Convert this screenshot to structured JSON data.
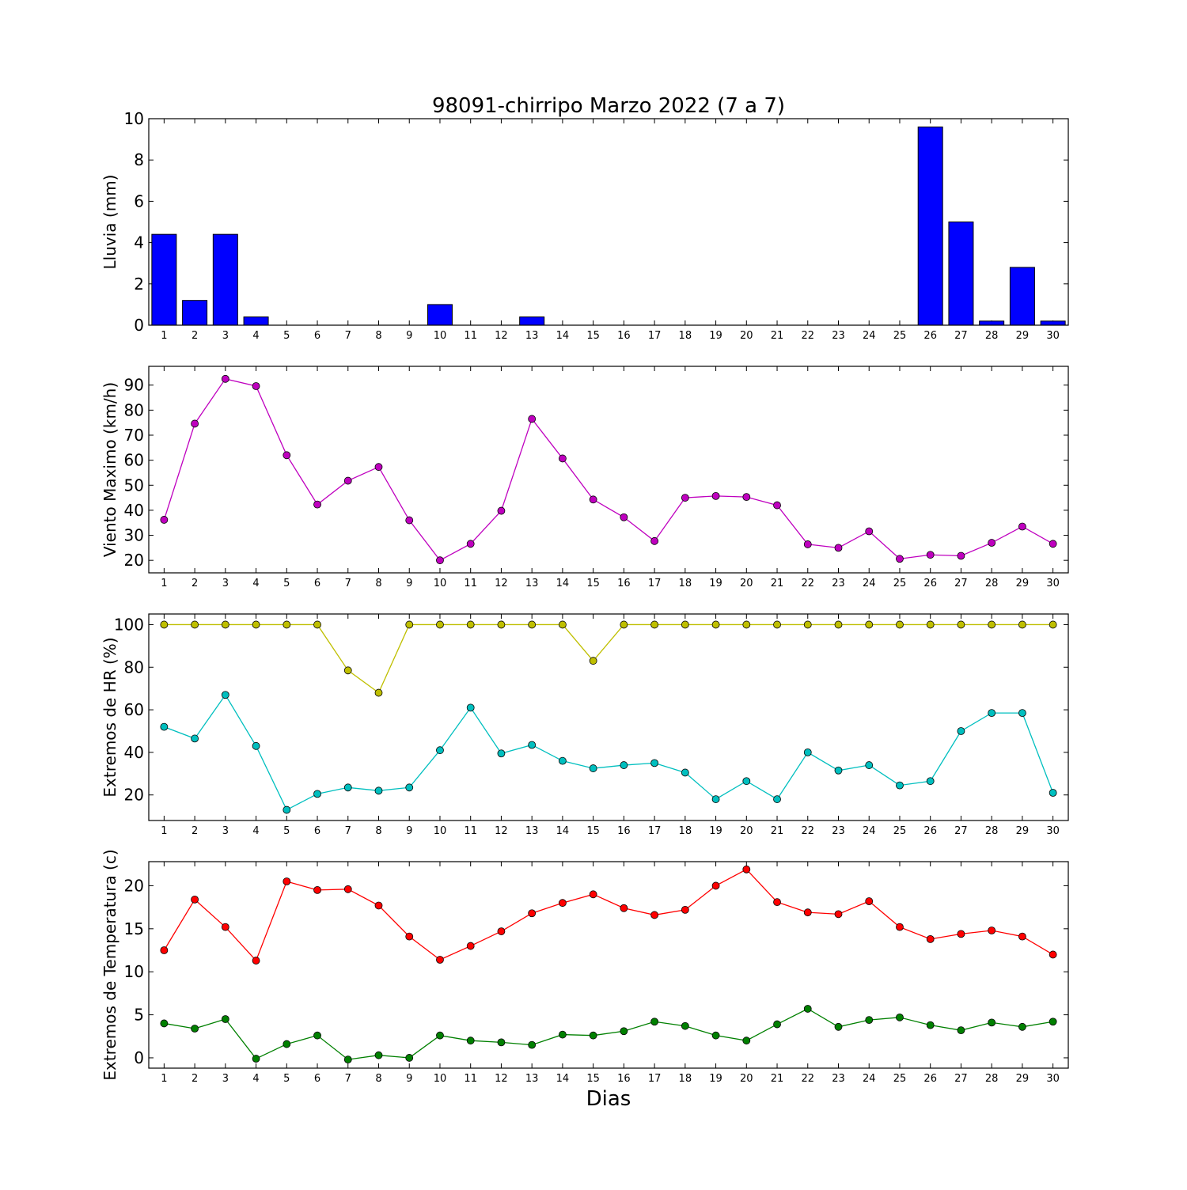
{
  "title": "98091-chirripo Marzo 2022  (7 a 7)",
  "xlabel": "Dias",
  "chart_data": [
    {
      "type": "bar",
      "ylabel": "Lluvia (mm)",
      "ylim": [
        0,
        10
      ],
      "yticks": [
        0,
        2,
        4,
        6,
        8,
        10
      ],
      "categories": [
        "1",
        "2",
        "3",
        "4",
        "5",
        "6",
        "7",
        "8",
        "9",
        "10",
        "11",
        "12",
        "13",
        "14",
        "15",
        "16",
        "17",
        "18",
        "19",
        "20",
        "21",
        "22",
        "23",
        "24",
        "25",
        "26",
        "27",
        "28",
        "29",
        "30"
      ],
      "values": [
        4.4,
        1.2,
        4.4,
        0.4,
        0,
        0,
        0,
        0,
        0,
        1.0,
        0,
        0,
        0.4,
        0,
        0,
        0,
        0,
        0,
        0,
        0,
        0,
        0,
        0,
        0,
        0,
        9.6,
        5.0,
        0.2,
        2.8,
        0.2
      ],
      "color": "#0000ff"
    },
    {
      "type": "line",
      "ylabel": "Viento Maximo (km/h)",
      "ylim": [
        15,
        97.5
      ],
      "yticks": [
        20,
        30,
        40,
        50,
        60,
        70,
        80,
        90
      ],
      "categories": [
        "1",
        "2",
        "3",
        "4",
        "5",
        "6",
        "7",
        "8",
        "9",
        "10",
        "11",
        "12",
        "13",
        "14",
        "15",
        "16",
        "17",
        "18",
        "19",
        "20",
        "21",
        "22",
        "23",
        "24",
        "25",
        "26",
        "27",
        "28",
        "29",
        "30"
      ],
      "series": [
        {
          "color": "#bf00bf",
          "values": [
            36.2,
            74.6,
            92.5,
            89.6,
            62.0,
            42.3,
            51.8,
            57.3,
            36.0,
            20.0,
            26.6,
            39.8,
            76.5,
            60.7,
            44.3,
            37.2,
            27.7,
            45.0,
            45.7,
            45.3,
            42.0,
            26.4,
            25.0,
            31.6,
            20.6,
            22.2,
            21.8,
            27.0,
            33.5,
            26.6
          ]
        }
      ]
    },
    {
      "type": "line",
      "ylabel": "Extremos de HR (%)",
      "ylim": [
        8,
        105
      ],
      "yticks": [
        20,
        40,
        60,
        80,
        100
      ],
      "categories": [
        "1",
        "2",
        "3",
        "4",
        "5",
        "6",
        "7",
        "8",
        "9",
        "10",
        "11",
        "12",
        "13",
        "14",
        "15",
        "16",
        "17",
        "18",
        "19",
        "20",
        "21",
        "22",
        "23",
        "24",
        "25",
        "26",
        "27",
        "28",
        "29",
        "30"
      ],
      "series": [
        {
          "color": "#bfbf00",
          "values": [
            100,
            100,
            100,
            100,
            100,
            100,
            78.5,
            68,
            100,
            100,
            100,
            100,
            100,
            100,
            83,
            100,
            100,
            100,
            100,
            100,
            100,
            100,
            100,
            100,
            100,
            100,
            100,
            100,
            100,
            100
          ]
        },
        {
          "color": "#00bfbf",
          "values": [
            52,
            46.5,
            67,
            43,
            13,
            20.5,
            23.5,
            22,
            23.5,
            41,
            61,
            39.5,
            43.5,
            36,
            32.5,
            34,
            35,
            30.5,
            18,
            26.5,
            18,
            40,
            31.5,
            34,
            24.5,
            26.5,
            50,
            58.5,
            58.5,
            21
          ]
        }
      ]
    },
    {
      "type": "line",
      "ylabel": "Extremos de Temperatura (c)",
      "ylim": [
        -1.2,
        22.8
      ],
      "yticks": [
        0,
        5,
        10,
        15,
        20
      ],
      "categories": [
        "1",
        "2",
        "3",
        "4",
        "5",
        "6",
        "7",
        "8",
        "9",
        "10",
        "11",
        "12",
        "13",
        "14",
        "15",
        "16",
        "17",
        "18",
        "19",
        "20",
        "21",
        "22",
        "23",
        "24",
        "25",
        "26",
        "27",
        "28",
        "29",
        "30"
      ],
      "series": [
        {
          "color": "#ff0000",
          "values": [
            12.5,
            18.4,
            15.2,
            11.3,
            20.5,
            19.5,
            19.6,
            17.7,
            14.1,
            11.4,
            13.0,
            14.7,
            16.8,
            18.0,
            19.0,
            17.4,
            16.6,
            17.2,
            20.0,
            21.9,
            18.1,
            16.9,
            16.7,
            18.2,
            15.2,
            13.8,
            14.4,
            14.8,
            14.1,
            12.0
          ]
        },
        {
          "color": "#008000",
          "values": [
            4.0,
            3.4,
            4.5,
            -0.1,
            1.6,
            2.6,
            -0.2,
            0.3,
            0.0,
            2.6,
            2.0,
            1.8,
            1.5,
            2.7,
            2.6,
            3.1,
            4.2,
            3.7,
            2.6,
            2.0,
            3.9,
            5.7,
            3.6,
            4.4,
            4.7,
            3.8,
            3.2,
            4.1,
            3.6,
            4.2
          ]
        }
      ]
    }
  ]
}
